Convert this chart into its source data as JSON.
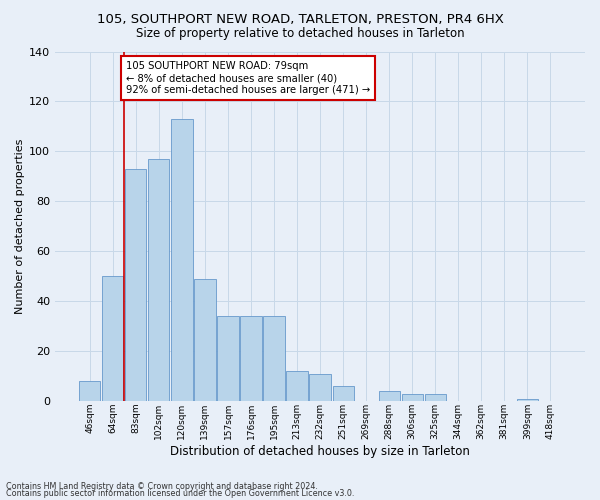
{
  "title": "105, SOUTHPORT NEW ROAD, TARLETON, PRESTON, PR4 6HX",
  "subtitle": "Size of property relative to detached houses in Tarleton",
  "xlabel": "Distribution of detached houses by size in Tarleton",
  "ylabel": "Number of detached properties",
  "categories": [
    "46sqm",
    "64sqm",
    "83sqm",
    "102sqm",
    "120sqm",
    "139sqm",
    "157sqm",
    "176sqm",
    "195sqm",
    "213sqm",
    "232sqm",
    "251sqm",
    "269sqm",
    "288sqm",
    "306sqm",
    "325sqm",
    "344sqm",
    "362sqm",
    "381sqm",
    "399sqm",
    "418sqm"
  ],
  "values": [
    8,
    50,
    93,
    97,
    113,
    49,
    34,
    34,
    34,
    12,
    11,
    6,
    0,
    4,
    3,
    3,
    0,
    0,
    0,
    1,
    0
  ],
  "bar_color": "#b8d4ea",
  "bar_edge_color": "#6699cc",
  "vline_x": 1.5,
  "vline_color": "#cc0000",
  "annotation_text": "105 SOUTHPORT NEW ROAD: 79sqm\n← 8% of detached houses are smaller (40)\n92% of semi-detached houses are larger (471) →",
  "annotation_box_color": "#ffffff",
  "annotation_box_edge": "#cc0000",
  "grid_color": "#c8d8e8",
  "background_color": "#e8eff8",
  "footer_line1": "Contains HM Land Registry data © Crown copyright and database right 2024.",
  "footer_line2": "Contains public sector information licensed under the Open Government Licence v3.0.",
  "ylim": [
    0,
    140
  ],
  "yticks": [
    0,
    20,
    40,
    60,
    80,
    100,
    120,
    140
  ]
}
